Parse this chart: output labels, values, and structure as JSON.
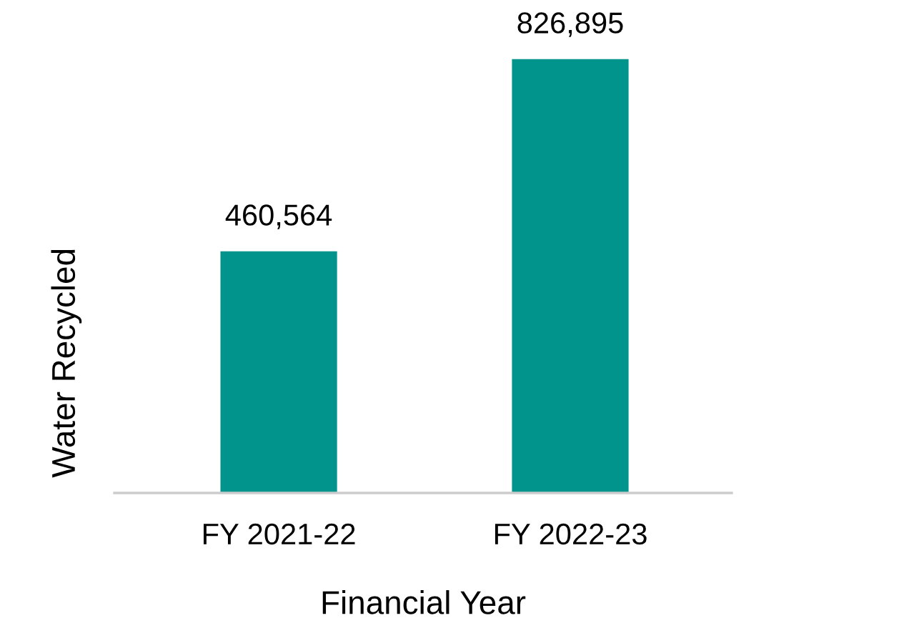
{
  "chart_data": {
    "type": "bar",
    "xlabel": "Financial Year",
    "ylabel": "Water Recycled",
    "categories": [
      "FY 2021-22",
      "FY 2022-23"
    ],
    "values": [
      460564,
      826895
    ],
    "color": "#00948d",
    "value_labels": [
      "460,564",
      "826,895"
    ]
  }
}
